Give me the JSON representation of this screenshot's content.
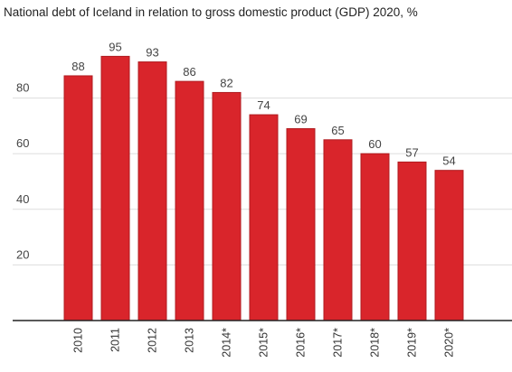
{
  "chart_data": {
    "type": "bar",
    "title": "National debt of Iceland in relation to gross domestic product (GDP) 2020, %",
    "categories": [
      "2010",
      "2011",
      "2012",
      "2013",
      "2014*",
      "2015*",
      "2016*",
      "2017*",
      "2018*",
      "2019*",
      "2020*"
    ],
    "values": [
      88,
      95,
      93,
      86,
      82,
      74,
      69,
      65,
      60,
      57,
      54
    ],
    "data_labels": [
      "88",
      "95",
      "93",
      "86",
      "82",
      "74",
      "69",
      "65",
      "60",
      "57",
      "54"
    ],
    "xlabel": "",
    "ylabel": "",
    "ylim": [
      0,
      100
    ],
    "yticks": [
      20,
      40,
      60,
      80
    ],
    "ytick_labels": [
      "20",
      "40",
      "60",
      "80"
    ],
    "grid": true,
    "bar_color": "#d9252b",
    "bar_edge_color": "#b01c20",
    "grid_color": "#dddddd",
    "axis_color": "#222222"
  }
}
